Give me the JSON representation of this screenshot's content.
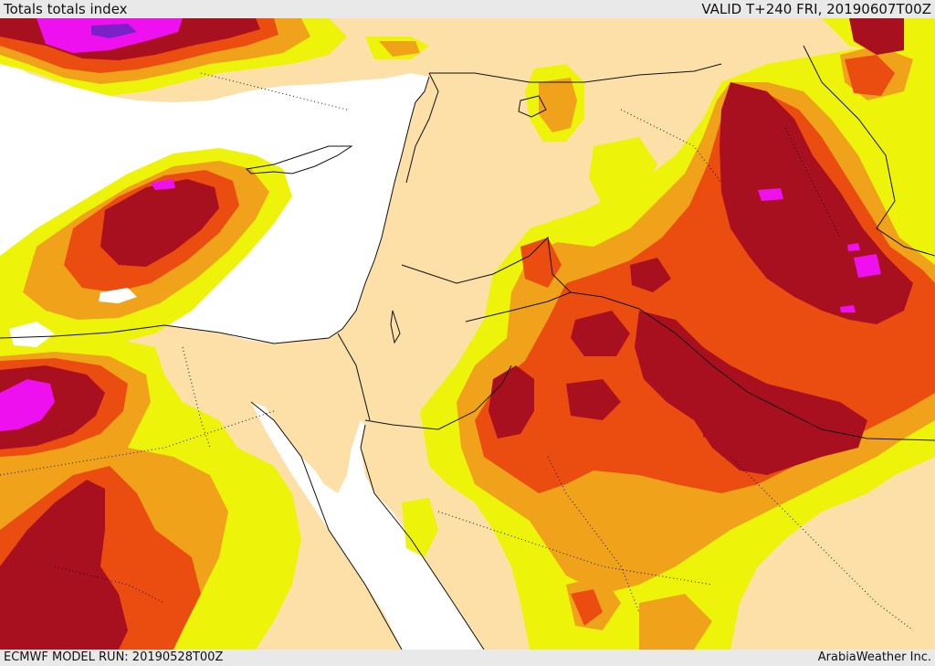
{
  "header": {
    "title": "Totals totals index",
    "valid": "VALID T+240 FRI, 20190607T00Z"
  },
  "footer": {
    "model_run": "ECMWF MODEL RUN: 20190528T00Z",
    "credit": "ArabiaWeather Inc."
  },
  "palette": {
    "land": "#fddfa8",
    "sea": "#ffffff",
    "level1": "#eef30a",
    "level2": "#f0a21a",
    "level3": "#ea4d0f",
    "level4": "#a8101f",
    "level5": "#ee10ee",
    "level6": "#7a22c8",
    "border": "#111111"
  }
}
